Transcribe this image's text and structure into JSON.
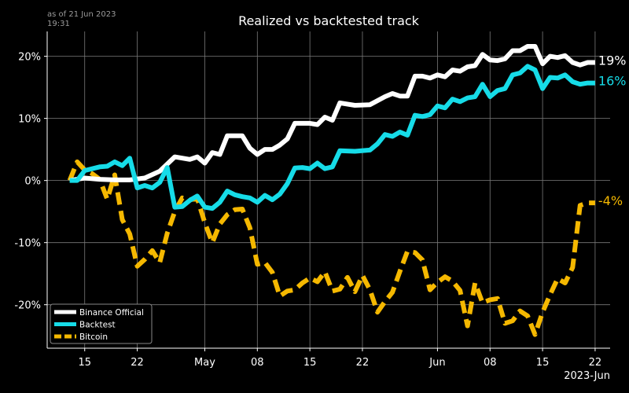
{
  "header": {
    "stamp_line1": "as of 21 Jun 2023",
    "stamp_line2": "19:31"
  },
  "chart_data": {
    "type": "line",
    "title": "Realized vs backtested track",
    "xlabel": "",
    "ylabel": "",
    "x_offset_label": "2023-Jun",
    "xlim": [
      "2023-04-10",
      "2023-06-24"
    ],
    "ylim": [
      -27,
      24
    ],
    "yticks": [
      20,
      10,
      0,
      -10,
      -20
    ],
    "ytick_labels": [
      "20%",
      "10%",
      "0%",
      "-10%",
      "-20%"
    ],
    "xticks": [
      "2023-04-15",
      "2023-04-22",
      "2023-05-01",
      "2023-05-08",
      "2023-05-15",
      "2023-05-22",
      "2023-06-01",
      "2023-06-08",
      "2023-06-15",
      "2023-06-22"
    ],
    "xtick_labels": [
      "15",
      "22",
      "May",
      "08",
      "15",
      "22",
      "Jun",
      "08",
      "15",
      "22"
    ],
    "grid": true,
    "legend_position": "bottom-left",
    "series": [
      {
        "name": "Binance Official",
        "color": "#ffffff",
        "style": "solid",
        "end_label": "19%",
        "points": [
          [
            "2023-04-13",
            0
          ],
          [
            "2023-04-15",
            0.4
          ],
          [
            "2023-04-17",
            0.2
          ],
          [
            "2023-04-19",
            0.1
          ],
          [
            "2023-04-21",
            0.1
          ],
          [
            "2023-04-23",
            0.4
          ],
          [
            "2023-04-25",
            1.5
          ],
          [
            "2023-04-27",
            3.8
          ],
          [
            "2023-04-29",
            3.4
          ],
          [
            "2023-04-30",
            3.8
          ],
          [
            "2023-05-01",
            2.8
          ],
          [
            "2023-05-02",
            4.5
          ],
          [
            "2023-05-03",
            4.2
          ],
          [
            "2023-05-04",
            7.2
          ],
          [
            "2023-05-06",
            7.2
          ],
          [
            "2023-05-07",
            5.2
          ],
          [
            "2023-05-08",
            4.2
          ],
          [
            "2023-05-09",
            5.0
          ],
          [
            "2023-05-10",
            5.0
          ],
          [
            "2023-05-11",
            5.7
          ],
          [
            "2023-05-12",
            6.7
          ],
          [
            "2023-05-13",
            9.2
          ],
          [
            "2023-05-15",
            9.2
          ],
          [
            "2023-05-16",
            9.0
          ],
          [
            "2023-05-17",
            10.2
          ],
          [
            "2023-05-18",
            9.7
          ],
          [
            "2023-05-19",
            12.5
          ],
          [
            "2023-05-21",
            12.1
          ],
          [
            "2023-05-23",
            12.2
          ],
          [
            "2023-05-25",
            13.5
          ],
          [
            "2023-05-26",
            14.0
          ],
          [
            "2023-05-27",
            13.6
          ],
          [
            "2023-05-28",
            13.6
          ],
          [
            "2023-05-29",
            16.8
          ],
          [
            "2023-05-30",
            16.8
          ],
          [
            "2023-05-31",
            16.5
          ],
          [
            "2023-06-01",
            17.0
          ],
          [
            "2023-06-02",
            16.7
          ],
          [
            "2023-06-03",
            17.8
          ],
          [
            "2023-06-04",
            17.6
          ],
          [
            "2023-06-05",
            18.3
          ],
          [
            "2023-06-06",
            18.5
          ],
          [
            "2023-06-07",
            20.3
          ],
          [
            "2023-06-08",
            19.4
          ],
          [
            "2023-06-09",
            19.3
          ],
          [
            "2023-06-10",
            19.6
          ],
          [
            "2023-06-11",
            20.9
          ],
          [
            "2023-06-12",
            20.9
          ],
          [
            "2023-06-13",
            21.6
          ],
          [
            "2023-06-14",
            21.6
          ],
          [
            "2023-06-15",
            18.8
          ],
          [
            "2023-06-16",
            20.0
          ],
          [
            "2023-06-17",
            19.8
          ],
          [
            "2023-06-18",
            20.1
          ],
          [
            "2023-06-19",
            19.0
          ],
          [
            "2023-06-20",
            18.6
          ],
          [
            "2023-06-21",
            19.0
          ],
          [
            "2023-06-22",
            19.0
          ]
        ]
      },
      {
        "name": "Backtest",
        "color": "#16dce8",
        "style": "solid",
        "end_label": "16%",
        "points": [
          [
            "2023-04-13",
            0
          ],
          [
            "2023-04-14",
            0
          ],
          [
            "2023-04-15",
            1.6
          ],
          [
            "2023-04-17",
            2.2
          ],
          [
            "2023-04-18",
            2.3
          ],
          [
            "2023-04-19",
            3.0
          ],
          [
            "2023-04-20",
            2.4
          ],
          [
            "2023-04-21",
            3.6
          ],
          [
            "2023-04-22",
            -1.2
          ],
          [
            "2023-04-23",
            -0.8
          ],
          [
            "2023-04-24",
            -1.2
          ],
          [
            "2023-04-25",
            -0.3
          ],
          [
            "2023-04-26",
            2.1
          ],
          [
            "2023-04-27",
            -4.3
          ],
          [
            "2023-04-28",
            -4.2
          ],
          [
            "2023-04-29",
            -3.2
          ],
          [
            "2023-04-30",
            -2.5
          ],
          [
            "2023-05-01",
            -4.3
          ],
          [
            "2023-05-02",
            -4.5
          ],
          [
            "2023-05-03",
            -3.5
          ],
          [
            "2023-05-04",
            -1.7
          ],
          [
            "2023-05-05",
            -2.3
          ],
          [
            "2023-05-06",
            -2.6
          ],
          [
            "2023-05-07",
            -2.8
          ],
          [
            "2023-05-08",
            -3.5
          ],
          [
            "2023-05-09",
            -2.4
          ],
          [
            "2023-05-10",
            -3.1
          ],
          [
            "2023-05-11",
            -2.2
          ],
          [
            "2023-05-12",
            -0.5
          ],
          [
            "2023-05-13",
            2.0
          ],
          [
            "2023-05-14",
            2.1
          ],
          [
            "2023-05-15",
            1.9
          ],
          [
            "2023-05-16",
            2.8
          ],
          [
            "2023-05-17",
            1.9
          ],
          [
            "2023-05-18",
            2.2
          ],
          [
            "2023-05-19",
            4.8
          ],
          [
            "2023-05-21",
            4.7
          ],
          [
            "2023-05-23",
            4.9
          ],
          [
            "2023-05-24",
            5.9
          ],
          [
            "2023-05-25",
            7.4
          ],
          [
            "2023-05-26",
            7.1
          ],
          [
            "2023-05-27",
            7.8
          ],
          [
            "2023-05-28",
            7.3
          ],
          [
            "2023-05-29",
            10.5
          ],
          [
            "2023-05-30",
            10.3
          ],
          [
            "2023-05-31",
            10.6
          ],
          [
            "2023-06-01",
            12.0
          ],
          [
            "2023-06-02",
            11.7
          ],
          [
            "2023-06-03",
            13.1
          ],
          [
            "2023-06-04",
            12.7
          ],
          [
            "2023-06-05",
            13.3
          ],
          [
            "2023-06-06",
            13.5
          ],
          [
            "2023-06-07",
            15.5
          ],
          [
            "2023-06-08",
            13.5
          ],
          [
            "2023-06-09",
            14.5
          ],
          [
            "2023-06-10",
            14.8
          ],
          [
            "2023-06-11",
            17.0
          ],
          [
            "2023-06-12",
            17.3
          ],
          [
            "2023-06-13",
            18.4
          ],
          [
            "2023-06-14",
            17.8
          ],
          [
            "2023-06-15",
            14.8
          ],
          [
            "2023-06-16",
            16.6
          ],
          [
            "2023-06-17",
            16.5
          ],
          [
            "2023-06-18",
            17.0
          ],
          [
            "2023-06-19",
            15.9
          ],
          [
            "2023-06-20",
            15.5
          ],
          [
            "2023-06-21",
            15.7
          ],
          [
            "2023-06-22",
            15.7
          ]
        ]
      },
      {
        "name": "Bitcoin",
        "color": "#f5b800",
        "style": "dashed",
        "end_label": "-4%",
        "points": [
          [
            "2023-04-13",
            0
          ],
          [
            "2023-04-14",
            3.0
          ],
          [
            "2023-04-15",
            1.7
          ],
          [
            "2023-04-16",
            1.1
          ],
          [
            "2023-04-17",
            0.2
          ],
          [
            "2023-04-18",
            -3.0
          ],
          [
            "2023-04-19",
            0.9
          ],
          [
            "2023-04-20",
            -6.3
          ],
          [
            "2023-04-21",
            -8.6
          ],
          [
            "2023-04-22",
            -13.8
          ],
          [
            "2023-04-23",
            -12.7
          ],
          [
            "2023-04-24",
            -11.3
          ],
          [
            "2023-04-25",
            -13.2
          ],
          [
            "2023-04-26",
            -8.5
          ],
          [
            "2023-04-27",
            -5.0
          ],
          [
            "2023-04-28",
            -2.8
          ],
          [
            "2023-04-29",
            -3.1
          ],
          [
            "2023-04-30",
            -2.9
          ],
          [
            "2023-05-01",
            -6.8
          ],
          [
            "2023-05-02",
            -10.0
          ],
          [
            "2023-05-03",
            -7.0
          ],
          [
            "2023-05-04",
            -5.5
          ],
          [
            "2023-05-05",
            -4.7
          ],
          [
            "2023-05-06",
            -4.6
          ],
          [
            "2023-05-07",
            -7.6
          ],
          [
            "2023-05-08",
            -13.5
          ],
          [
            "2023-05-09",
            -13.2
          ],
          [
            "2023-05-10",
            -14.8
          ],
          [
            "2023-05-11",
            -18.6
          ],
          [
            "2023-05-12",
            -17.8
          ],
          [
            "2023-05-13",
            -17.6
          ],
          [
            "2023-05-14",
            -16.5
          ],
          [
            "2023-05-15",
            -15.7
          ],
          [
            "2023-05-16",
            -16.3
          ],
          [
            "2023-05-17",
            -14.7
          ],
          [
            "2023-05-18",
            -17.8
          ],
          [
            "2023-05-19",
            -17.5
          ],
          [
            "2023-05-20",
            -15.6
          ],
          [
            "2023-05-21",
            -17.9
          ],
          [
            "2023-05-22",
            -15.3
          ],
          [
            "2023-05-23",
            -17.6
          ],
          [
            "2023-05-24",
            -21.2
          ],
          [
            "2023-05-25",
            -19.5
          ],
          [
            "2023-05-26",
            -18.0
          ],
          [
            "2023-05-27",
            -14.6
          ],
          [
            "2023-05-28",
            -11.4
          ],
          [
            "2023-05-29",
            -11.6
          ],
          [
            "2023-05-30",
            -12.8
          ],
          [
            "2023-05-31",
            -17.6
          ],
          [
            "2023-06-01",
            -16.4
          ],
          [
            "2023-06-02",
            -15.5
          ],
          [
            "2023-06-03",
            -16.2
          ],
          [
            "2023-06-04",
            -17.7
          ],
          [
            "2023-06-05",
            -23.4
          ],
          [
            "2023-06-06",
            -16.5
          ],
          [
            "2023-06-07",
            -19.7
          ],
          [
            "2023-06-08",
            -19.2
          ],
          [
            "2023-06-09",
            -19.0
          ],
          [
            "2023-06-10",
            -23.0
          ],
          [
            "2023-06-11",
            -22.6
          ],
          [
            "2023-06-12",
            -21.0
          ],
          [
            "2023-06-13",
            -21.8
          ],
          [
            "2023-06-14",
            -24.8
          ],
          [
            "2023-06-15",
            -21.2
          ],
          [
            "2023-06-16",
            -18.4
          ],
          [
            "2023-06-17",
            -15.8
          ],
          [
            "2023-06-18",
            -16.5
          ],
          [
            "2023-06-19",
            -14.0
          ],
          [
            "2023-06-20",
            -4.0
          ],
          [
            "2023-06-21",
            -3.6
          ],
          [
            "2023-06-22",
            -3.6
          ]
        ]
      }
    ]
  }
}
